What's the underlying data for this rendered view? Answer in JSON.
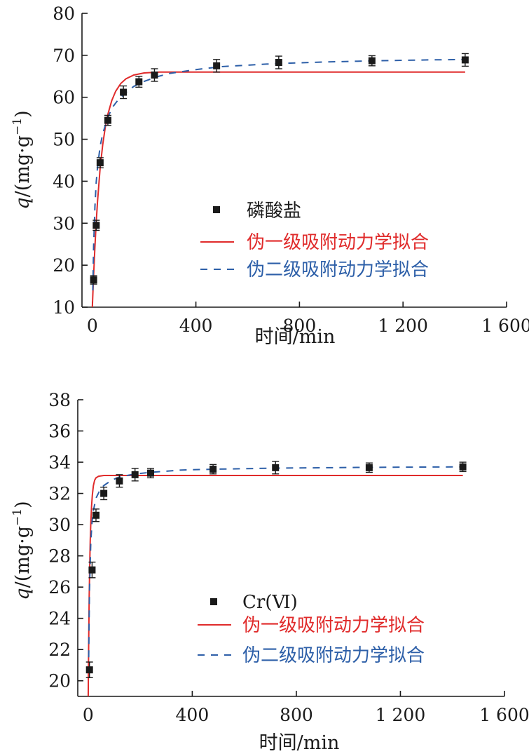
{
  "colors": {
    "points": "#1a1a1a",
    "pfo": "#e02b2b",
    "pso": "#2d5fa8",
    "axis": "#1a1a1a"
  },
  "chart_data": [
    {
      "type": "scatter",
      "xlabel": "时间/min",
      "ylabel": {
        "q": "q",
        "rest": "/(mg·g",
        "sup": "−1",
        "close": ")"
      },
      "xlim": [
        -40,
        1600
      ],
      "ylim": [
        10,
        80
      ],
      "xticks": [
        0,
        400,
        800,
        1200,
        1600
      ],
      "xtick_labels": [
        "0",
        "400",
        "800",
        "1 200",
        "1 600"
      ],
      "yticks": [
        10,
        20,
        30,
        40,
        50,
        60,
        70,
        80
      ],
      "ytick_labels": [
        "10",
        "20",
        "30",
        "40",
        "50",
        "60",
        "70",
        "80"
      ],
      "legend_position": "center",
      "series": [
        {
          "name": "磷酸盐",
          "kind": "points",
          "color": "#1a1a1a",
          "x": [
            5,
            15,
            30,
            60,
            120,
            180,
            240,
            480,
            720,
            1080,
            1440
          ],
          "y": [
            16.5,
            29.5,
            44.4,
            54.5,
            61.2,
            63.7,
            65.3,
            67.5,
            68.3,
            68.7,
            68.9
          ],
          "err": [
            1.0,
            1.2,
            1.2,
            1.2,
            1.5,
            1.3,
            1.5,
            1.5,
            1.5,
            1.2,
            1.5
          ]
        },
        {
          "name": "伪一级吸附动力学拟合",
          "kind": "line",
          "color": "#e02b2b",
          "dash": "none",
          "x": [
            0,
            2,
            5,
            10,
            15,
            20,
            30,
            40,
            50,
            60,
            75,
            90,
            110,
            130,
            160,
            200,
            260,
            350,
            500,
            800,
            1100,
            1440
          ],
          "y": [
            10.0,
            13.0,
            17.6,
            24.4,
            30.2,
            35.2,
            43.1,
            48.7,
            52.9,
            56.0,
            59.2,
            61.4,
            63.3,
            64.4,
            65.3,
            65.8,
            66.0,
            66.0,
            66.0,
            66.0,
            66.0,
            66.0
          ]
        },
        {
          "name": "伪二级吸附动力学拟合",
          "kind": "line",
          "color": "#2d5fa8",
          "dash": "10 9",
          "x": [
            2,
            5,
            10,
            15,
            20,
            30,
            40,
            60,
            80,
            100,
            130,
            160,
            200,
            250,
            300,
            400,
            500,
            700,
            900,
            1100,
            1300,
            1440
          ],
          "y": [
            14.0,
            24.5,
            34.0,
            39.7,
            43.4,
            48.3,
            51.3,
            55.3,
            57.8,
            59.4,
            61.2,
            62.6,
            63.8,
            64.9,
            65.7,
            66.6,
            67.3,
            68.0,
            68.4,
            68.7,
            68.9,
            69.0
          ]
        }
      ]
    },
    {
      "type": "scatter",
      "xlabel": "时间/min",
      "ylabel": {
        "q": "q",
        "rest": "/(mg·g",
        "sup": "−1",
        "close": ")"
      },
      "xlim": [
        -40,
        1600
      ],
      "ylim": [
        19,
        38
      ],
      "xticks": [
        0,
        400,
        800,
        1200,
        1600
      ],
      "xtick_labels": [
        "0",
        "400",
        "800",
        "1 200",
        "1 600"
      ],
      "yticks": [
        20,
        22,
        24,
        26,
        28,
        30,
        32,
        34,
        36,
        38
      ],
      "ytick_labels": [
        "20",
        "22",
        "24",
        "26",
        "28",
        "30",
        "32",
        "34",
        "36",
        "38"
      ],
      "legend_position": "center",
      "series": [
        {
          "name": "Cr(Ⅵ)",
          "kind": "points",
          "color": "#1a1a1a",
          "x": [
            5,
            15,
            30,
            60,
            120,
            180,
            240,
            480,
            720,
            1080,
            1440
          ],
          "y": [
            20.7,
            27.1,
            30.6,
            32.0,
            32.8,
            33.2,
            33.3,
            33.55,
            33.65,
            33.65,
            33.7
          ],
          "err": [
            0.5,
            0.5,
            0.4,
            0.4,
            0.4,
            0.4,
            0.3,
            0.3,
            0.4,
            0.3,
            0.3
          ]
        },
        {
          "name": "伪一级吸附动力学拟合",
          "kind": "line",
          "color": "#e02b2b",
          "dash": "none",
          "x": [
            0,
            2,
            4,
            6,
            8,
            10,
            13,
            16,
            20,
            25,
            30,
            40,
            60,
            100,
            200,
            400,
            800,
            1440
          ],
          "y": [
            19.0,
            22.5,
            25.4,
            27.5,
            29.0,
            30.1,
            31.2,
            31.9,
            32.5,
            32.85,
            33.0,
            33.1,
            33.15,
            33.15,
            33.15,
            33.15,
            33.15,
            33.15
          ]
        },
        {
          "name": "伪二级吸附动力学拟合",
          "kind": "line",
          "color": "#2d5fa8",
          "dash": "10 9",
          "x": [
            2,
            5,
            10,
            15,
            20,
            30,
            45,
            60,
            90,
            120,
            180,
            240,
            360,
            480,
            720,
            1080,
            1440
          ],
          "y": [
            21.5,
            25.8,
            28.9,
            30.2,
            30.9,
            31.7,
            32.2,
            32.5,
            32.85,
            33.05,
            33.25,
            33.35,
            33.5,
            33.55,
            33.62,
            33.67,
            33.7
          ]
        }
      ]
    }
  ]
}
